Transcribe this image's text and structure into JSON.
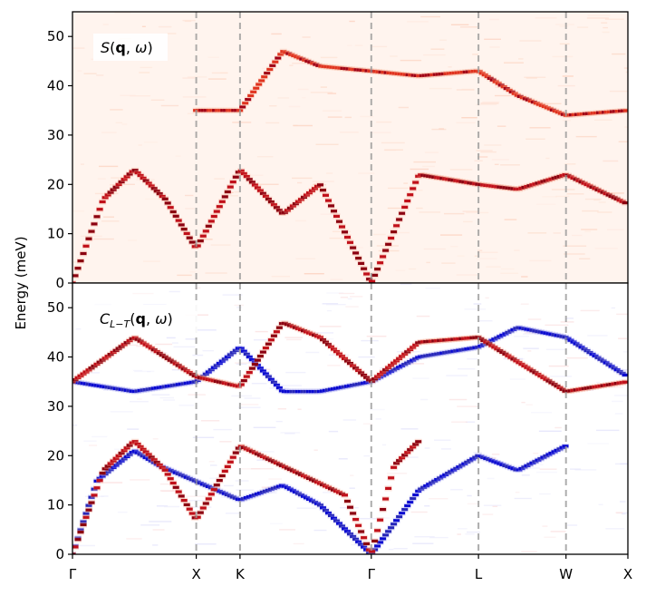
{
  "chart_data": {
    "type": "heatmap",
    "shared_ylabel": "Energy (meV)",
    "x_high_symmetry_labels": [
      "Γ",
      "X",
      "K",
      "Γ",
      "L",
      "W",
      "X"
    ],
    "x_high_symmetry_positions": [
      0.0,
      1.0,
      1.3536,
      2.4142,
      3.2802,
      3.9873,
      4.4873
    ],
    "dashed_vertical_lines_at": [
      "X",
      "K",
      "Γ",
      "L",
      "W"
    ],
    "ylim": [
      0,
      55
    ],
    "yticks": [
      0,
      10,
      20,
      30,
      40,
      50
    ],
    "panels": [
      {
        "annotation": "S(q, ω)",
        "annotation_parts": {
          "italic": "S",
          "open": "(",
          "bold": "q",
          "sep": ", ",
          "omega": "ω",
          "close": ")"
        },
        "colormap": "Reds",
        "branches": [
          {
            "name": "acoustic",
            "x": [
              0.0,
              0.25,
              0.5,
              0.75,
              1.0,
              1.3536,
              1.7,
              2.0,
              2.4142,
              2.8,
              3.2802,
              3.6,
              3.9873,
              4.4873
            ],
            "energy": [
              0,
              17,
              23,
              17,
              7,
              23,
              14,
              20,
              0,
              22,
              20,
              19,
              22,
              16
            ]
          },
          {
            "name": "optical",
            "x": [
              1.0,
              1.3536,
              1.7,
              2.0,
              2.8,
              3.2802,
              3.6,
              3.9873,
              4.4873
            ],
            "energy": [
              35,
              35,
              47,
              44,
              42,
              43,
              38,
              34,
              35
            ]
          }
        ]
      },
      {
        "annotation": "C_{L-T}(q, ω)",
        "annotation_parts": {
          "base": "C",
          "sub": "L−T",
          "open": "(",
          "bold": "q",
          "sep": ", ",
          "omega": "ω",
          "close": ")"
        },
        "colormap": "bwr",
        "longitudinal_red": [
          {
            "x": [
              0.0,
              0.5,
              1.0,
              1.3536,
              1.7,
              2.0,
              2.4142,
              2.8,
              3.2802,
              3.6,
              3.9873,
              4.4873
            ],
            "energy": [
              35,
              44,
              36,
              34,
              47,
              44,
              35,
              43,
              44,
              39,
              33,
              35
            ]
          },
          {
            "x": [
              0.0,
              0.25,
              0.5,
              0.75,
              1.0,
              1.3536,
              2.2,
              2.4142,
              2.6,
              2.8
            ],
            "energy": [
              0,
              17,
              23,
              17,
              7,
              22,
              12,
              0,
              18,
              23
            ]
          }
        ],
        "transverse_blue": [
          {
            "x": [
              0.0,
              0.5,
              1.0,
              1.3536,
              1.7,
              2.0,
              2.4142,
              2.8,
              3.2802,
              3.6,
              3.9873,
              4.4873
            ],
            "energy": [
              35,
              33,
              35,
              42,
              33,
              33,
              35,
              40,
              42,
              46,
              44,
              36
            ]
          },
          {
            "x": [
              0.0,
              0.2,
              0.5,
              0.7,
              1.3536,
              1.7,
              2.0,
              2.4142,
              2.8,
              3.2802,
              3.6,
              3.9873
            ],
            "energy": [
              0,
              15,
              21,
              18,
              11,
              14,
              10,
              0,
              13,
              20,
              17,
              22
            ]
          }
        ]
      }
    ]
  }
}
